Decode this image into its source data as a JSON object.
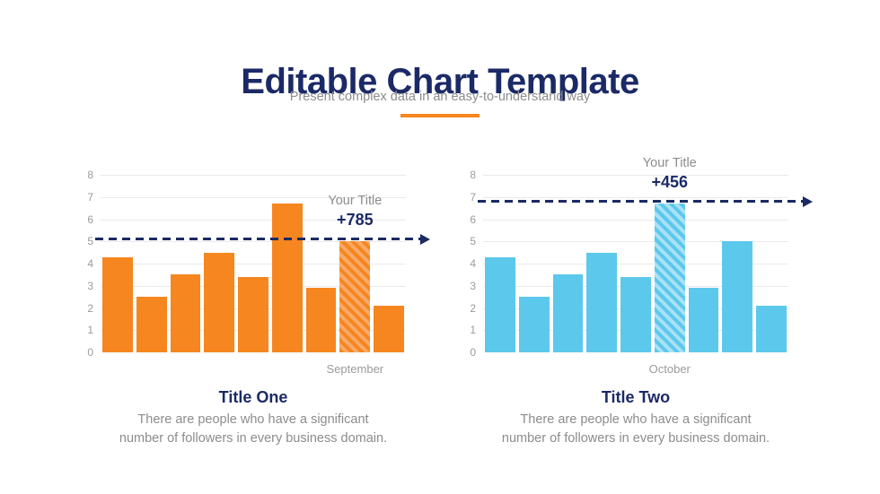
{
  "header": {
    "title": "Editable Chart Template",
    "subtitle": "Present complex data in an easy-to-understand way"
  },
  "colors": {
    "navy": "#1b2a67",
    "orange_accent": "#f6861f",
    "gray_text": "#8c8c8c",
    "tick_gray": "#9b9b9b",
    "gridline": "#eaeaea"
  },
  "chart_data": [
    {
      "type": "bar",
      "values": [
        4.3,
        2.5,
        3.5,
        4.5,
        3.4,
        6.7,
        2.9,
        5.0,
        2.1
      ],
      "highlighted_index": 7,
      "reference_line_value": 5.1,
      "annotation_label": "Your Title",
      "annotation_value": "+785",
      "x_axis_label": "September",
      "title": "Title One",
      "description_lines": [
        "There are people who have a significant",
        "number of followers in every business domain."
      ],
      "bar_color": "#f6861f",
      "bar_color_light": "#f9a968",
      "line_color": "#1b2a63",
      "ylim": [
        0,
        8
      ],
      "yticks": [
        0,
        1,
        2,
        3,
        4,
        5,
        6,
        7,
        8
      ],
      "grid": true,
      "legend": "none"
    },
    {
      "type": "bar",
      "values": [
        4.3,
        2.5,
        3.5,
        4.5,
        3.4,
        6.7,
        2.9,
        5.0,
        2.1
      ],
      "highlighted_index": 5,
      "reference_line_value": 6.8,
      "annotation_label": "Your Title",
      "annotation_value": "+456",
      "x_axis_label": "October",
      "title": "Title Two",
      "description_lines": [
        "There are people who have a significant",
        "number of followers in every business domain."
      ],
      "bar_color": "#5cc8ec",
      "bar_color_light": "#a9e1f6",
      "line_color": "#1b2a63",
      "ylim": [
        0,
        8
      ],
      "yticks": [
        0,
        1,
        2,
        3,
        4,
        5,
        6,
        7,
        8
      ],
      "grid": true,
      "legend": "none"
    }
  ]
}
